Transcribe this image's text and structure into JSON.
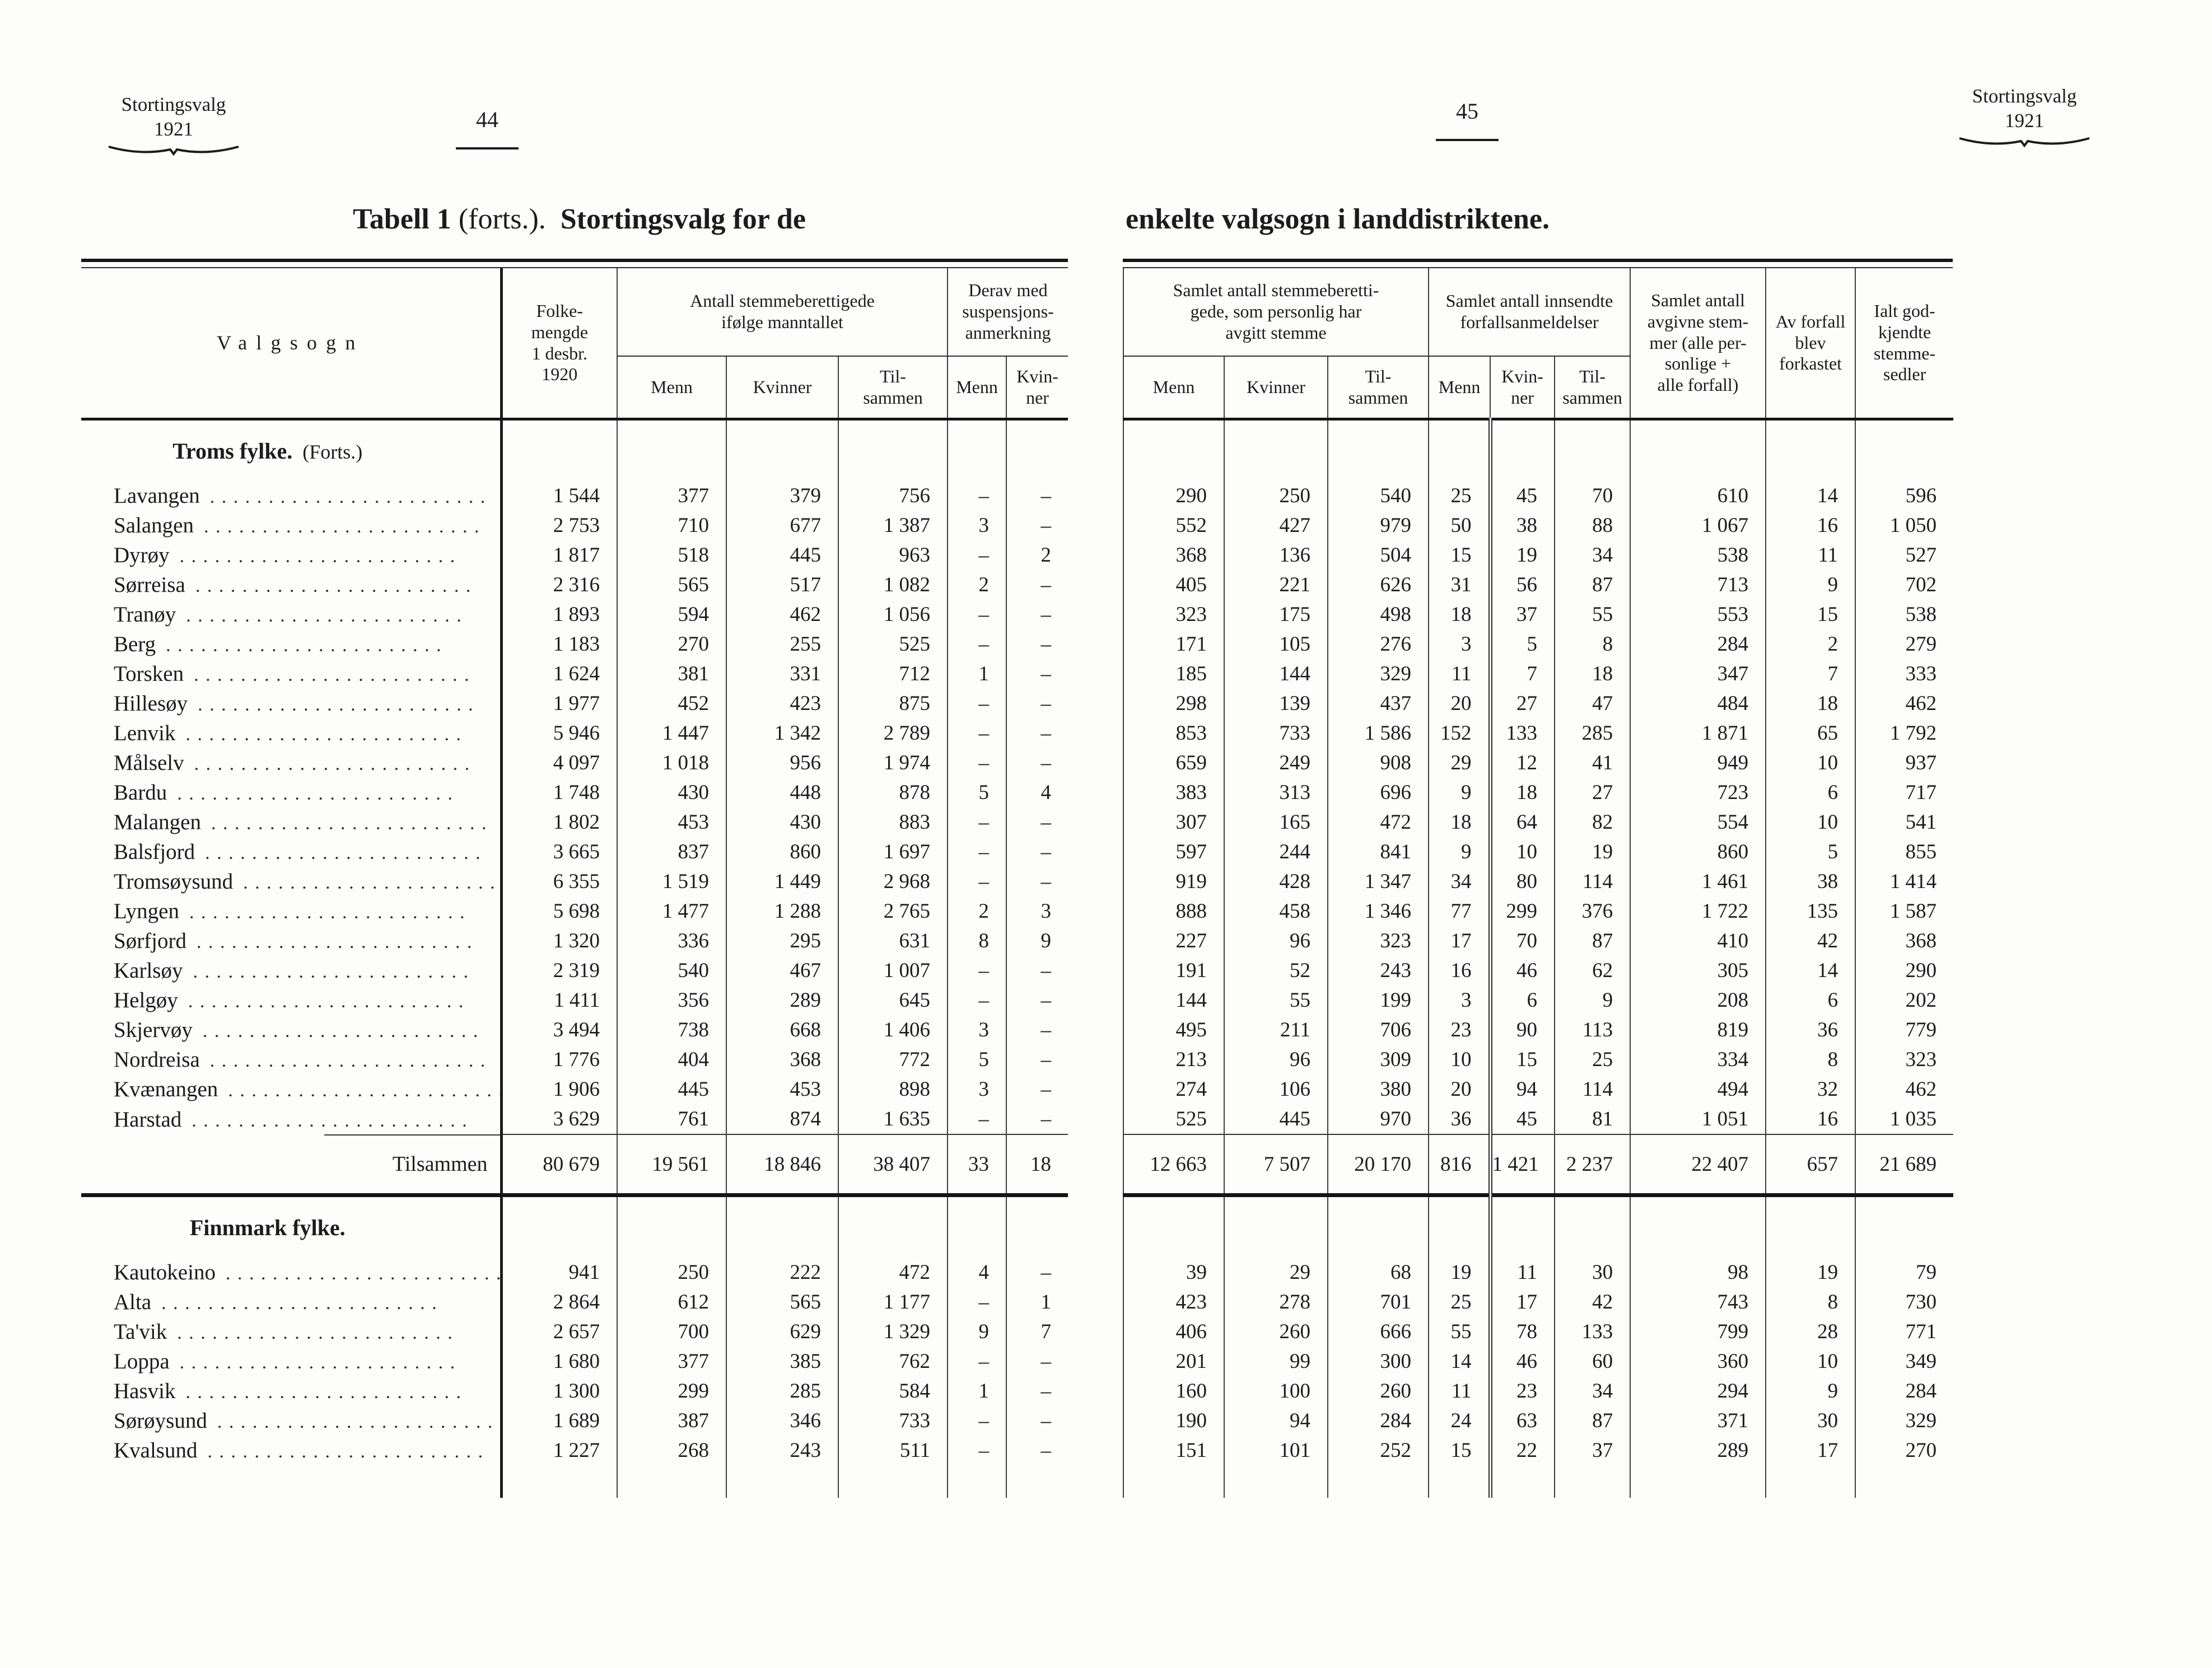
{
  "left_page": {
    "corner": {
      "line1": "Stortingsvalg",
      "line2": "1921"
    },
    "page_number": "44",
    "title": {
      "bold1": "Tabell 1",
      "normal": "(forts.).",
      "bold2": "Stortingsvalg for de"
    },
    "header": {
      "valgsogn": "Valgsogn",
      "folkemengde": "Folke-\nmengde\n1 desbr.\n1920",
      "group_manntall": "Antall stemmeberettigede\nifølge manntallet",
      "group_suspensjon": "Derav med\nsuspensjons-\nanmerkning",
      "menn": "Menn",
      "kvinner": "Kvinner",
      "tilsammen": "Til-\nsammen",
      "susp_menn": "Menn",
      "susp_kvinner": "Kvin-\nner"
    }
  },
  "right_page": {
    "corner": {
      "line1": "Stortingsvalg",
      "line2": "1921"
    },
    "page_number": "45",
    "title": "enkelte valgsogn i landdistriktene.",
    "header": {
      "group_personlig": "Samlet antall stemmeberetti-\ngede, som personlig har\navgitt stemme",
      "group_forfall": "Samlet antall innsendte\nforfallsanmeldelser",
      "menn": "Menn",
      "kvinner": "Kvinner",
      "tilsammen": "Til-\nsammen",
      "forfall_menn": "Menn",
      "forfall_kvinner": "Kvin-\nner",
      "forfall_tilsammen": "Til-\nsammen",
      "avgivne": "Samlet antall\navgivne stem-\nmer (alle per-\nsonlige +\nalle forfall)",
      "forkastet": "Av forfall\nblev\nforkastet",
      "godkjente": "Ialt god-\nkjendte\nstemme-\nsedler"
    }
  },
  "sections": [
    {
      "title": "Troms fylke.",
      "title_suffix": "(Forts.)",
      "rows": [
        {
          "name": "Lavangen",
          "left": [
            "1 544",
            "377",
            "379",
            "756",
            "–",
            "–"
          ],
          "right": [
            "290",
            "250",
            "540",
            "25",
            "45",
            "70",
            "610",
            "14",
            "596"
          ]
        },
        {
          "name": "Salangen",
          "left": [
            "2 753",
            "710",
            "677",
            "1 387",
            "3",
            "–"
          ],
          "right": [
            "552",
            "427",
            "979",
            "50",
            "38",
            "88",
            "1 067",
            "16",
            "1 050"
          ]
        },
        {
          "name": "Dyrøy",
          "left": [
            "1 817",
            "518",
            "445",
            "963",
            "–",
            "2"
          ],
          "right": [
            "368",
            "136",
            "504",
            "15",
            "19",
            "34",
            "538",
            "11",
            "527"
          ]
        },
        {
          "name": "Sørreisa",
          "left": [
            "2 316",
            "565",
            "517",
            "1 082",
            "2",
            "–"
          ],
          "right": [
            "405",
            "221",
            "626",
            "31",
            "56",
            "87",
            "713",
            "9",
            "702"
          ]
        },
        {
          "name": "Tranøy",
          "left": [
            "1 893",
            "594",
            "462",
            "1 056",
            "–",
            "–"
          ],
          "right": [
            "323",
            "175",
            "498",
            "18",
            "37",
            "55",
            "553",
            "15",
            "538"
          ]
        },
        {
          "name": "Berg",
          "left": [
            "1 183",
            "270",
            "255",
            "525",
            "–",
            "–"
          ],
          "right": [
            "171",
            "105",
            "276",
            "3",
            "5",
            "8",
            "284",
            "2",
            "279"
          ]
        },
        {
          "name": "Torsken",
          "left": [
            "1 624",
            "381",
            "331",
            "712",
            "1",
            "–"
          ],
          "right": [
            "185",
            "144",
            "329",
            "11",
            "7",
            "18",
            "347",
            "7",
            "333"
          ]
        },
        {
          "name": "Hillesøy",
          "left": [
            "1 977",
            "452",
            "423",
            "875",
            "–",
            "–"
          ],
          "right": [
            "298",
            "139",
            "437",
            "20",
            "27",
            "47",
            "484",
            "18",
            "462"
          ]
        },
        {
          "name": "Lenvik",
          "left": [
            "5 946",
            "1 447",
            "1 342",
            "2 789",
            "–",
            "–"
          ],
          "right": [
            "853",
            "733",
            "1 586",
            "152",
            "133",
            "285",
            "1 871",
            "65",
            "1 792"
          ]
        },
        {
          "name": "Målselv",
          "left": [
            "4 097",
            "1 018",
            "956",
            "1 974",
            "–",
            "–"
          ],
          "right": [
            "659",
            "249",
            "908",
            "29",
            "12",
            "41",
            "949",
            "10",
            "937"
          ]
        },
        {
          "name": "Bardu",
          "left": [
            "1 748",
            "430",
            "448",
            "878",
            "5",
            "4"
          ],
          "right": [
            "383",
            "313",
            "696",
            "9",
            "18",
            "27",
            "723",
            "6",
            "717"
          ]
        },
        {
          "name": "Malangen",
          "left": [
            "1 802",
            "453",
            "430",
            "883",
            "–",
            "–"
          ],
          "right": [
            "307",
            "165",
            "472",
            "18",
            "64",
            "82",
            "554",
            "10",
            "541"
          ]
        },
        {
          "name": "Balsfjord",
          "left": [
            "3 665",
            "837",
            "860",
            "1 697",
            "–",
            "–"
          ],
          "right": [
            "597",
            "244",
            "841",
            "9",
            "10",
            "19",
            "860",
            "5",
            "855"
          ]
        },
        {
          "name": "Tromsøysund",
          "left": [
            "6 355",
            "1 519",
            "1 449",
            "2 968",
            "–",
            "–"
          ],
          "right": [
            "919",
            "428",
            "1 347",
            "34",
            "80",
            "114",
            "1 461",
            "38",
            "1 414"
          ]
        },
        {
          "name": "Lyngen",
          "left": [
            "5 698",
            "1 477",
            "1 288",
            "2 765",
            "2",
            "3"
          ],
          "right": [
            "888",
            "458",
            "1 346",
            "77",
            "299",
            "376",
            "1 722",
            "135",
            "1 587"
          ]
        },
        {
          "name": "Sørfjord",
          "left": [
            "1 320",
            "336",
            "295",
            "631",
            "8",
            "9"
          ],
          "right": [
            "227",
            "96",
            "323",
            "17",
            "70",
            "87",
            "410",
            "42",
            "368"
          ]
        },
        {
          "name": "Karlsøy",
          "left": [
            "2 319",
            "540",
            "467",
            "1 007",
            "–",
            "–"
          ],
          "right": [
            "191",
            "52",
            "243",
            "16",
            "46",
            "62",
            "305",
            "14",
            "290"
          ]
        },
        {
          "name": "Helgøy",
          "left": [
            "1 411",
            "356",
            "289",
            "645",
            "–",
            "–"
          ],
          "right": [
            "144",
            "55",
            "199",
            "3",
            "6",
            "9",
            "208",
            "6",
            "202"
          ]
        },
        {
          "name": "Skjervøy",
          "left": [
            "3 494",
            "738",
            "668",
            "1 406",
            "3",
            "–"
          ],
          "right": [
            "495",
            "211",
            "706",
            "23",
            "90",
            "113",
            "819",
            "36",
            "779"
          ]
        },
        {
          "name": "Nordreisa",
          "left": [
            "1 776",
            "404",
            "368",
            "772",
            "5",
            "–"
          ],
          "right": [
            "213",
            "96",
            "309",
            "10",
            "15",
            "25",
            "334",
            "8",
            "323"
          ]
        },
        {
          "name": "Kvænangen",
          "left": [
            "1 906",
            "445",
            "453",
            "898",
            "3",
            "–"
          ],
          "right": [
            "274",
            "106",
            "380",
            "20",
            "94",
            "114",
            "494",
            "32",
            "462"
          ]
        },
        {
          "name": "Harstad",
          "left": [
            "3 629",
            "761",
            "874",
            "1 635",
            "–",
            "–"
          ],
          "right": [
            "525",
            "445",
            "970",
            "36",
            "45",
            "81",
            "1 051",
            "16",
            "1 035"
          ]
        }
      ],
      "total": {
        "label": "Tilsammen",
        "left": [
          "80 679",
          "19 561",
          "18 846",
          "38 407",
          "33",
          "18"
        ],
        "right": [
          "12 663",
          "7 507",
          "20 170",
          "816",
          "1 421",
          "2 237",
          "22 407",
          "657",
          "21 689"
        ]
      }
    },
    {
      "title": "Finnmark fylke.",
      "title_suffix": "",
      "rows": [
        {
          "name": "Kautokeino",
          "left": [
            "941",
            "250",
            "222",
            "472",
            "4",
            "–"
          ],
          "right": [
            "39",
            "29",
            "68",
            "19",
            "11",
            "30",
            "98",
            "19",
            "79"
          ]
        },
        {
          "name": "Alta",
          "left": [
            "2 864",
            "612",
            "565",
            "1 177",
            "–",
            "1"
          ],
          "right": [
            "423",
            "278",
            "701",
            "25",
            "17",
            "42",
            "743",
            "8",
            "730"
          ]
        },
        {
          "name": "Ta'vik",
          "left": [
            "2 657",
            "700",
            "629",
            "1 329",
            "9",
            "7"
          ],
          "right": [
            "406",
            "260",
            "666",
            "55",
            "78",
            "133",
            "799",
            "28",
            "771"
          ]
        },
        {
          "name": "Loppa",
          "left": [
            "1 680",
            "377",
            "385",
            "762",
            "–",
            "–"
          ],
          "right": [
            "201",
            "99",
            "300",
            "14",
            "46",
            "60",
            "360",
            "10",
            "349"
          ]
        },
        {
          "name": "Hasvik",
          "left": [
            "1 300",
            "299",
            "285",
            "584",
            "1",
            "–"
          ],
          "right": [
            "160",
            "100",
            "260",
            "11",
            "23",
            "34",
            "294",
            "9",
            "284"
          ]
        },
        {
          "name": "Sørøysund",
          "left": [
            "1 689",
            "387",
            "346",
            "733",
            "–",
            "–"
          ],
          "right": [
            "190",
            "94",
            "284",
            "24",
            "63",
            "87",
            "371",
            "30",
            "329"
          ]
        },
        {
          "name": "Kvalsund",
          "left": [
            "1 227",
            "268",
            "243",
            "511",
            "–",
            "–"
          ],
          "right": [
            "151",
            "101",
            "252",
            "15",
            "22",
            "37",
            "289",
            "17",
            "270"
          ]
        }
      ],
      "total": null
    }
  ]
}
